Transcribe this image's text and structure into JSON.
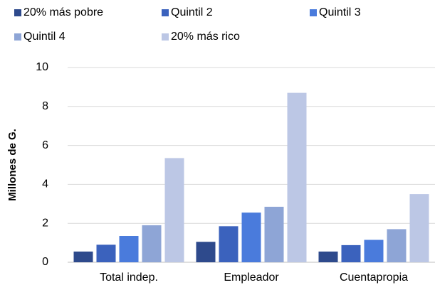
{
  "chart_data": {
    "type": "bar",
    "y_label": "Millones de G.",
    "categories": [
      "Total indep.",
      "Empleador",
      "Cuentapropia"
    ],
    "series": [
      {
        "name": "20% más pobre",
        "color": "#2e4a8c",
        "values": [
          0.55,
          1.05,
          0.55
        ]
      },
      {
        "name": "Quintil 2",
        "color": "#3b62bd",
        "values": [
          0.9,
          1.85,
          0.88
        ]
      },
      {
        "name": "Quintil 3",
        "color": "#4a7bdc",
        "values": [
          1.35,
          2.55,
          1.15
        ]
      },
      {
        "name": "Quintil 4",
        "color": "#8ea5d6",
        "values": [
          1.9,
          2.85,
          1.7
        ]
      },
      {
        "name": "20% más rico",
        "color": "#bcc7e5",
        "values": [
          5.35,
          8.7,
          3.5
        ]
      }
    ],
    "ylim": [
      0,
      10
    ],
    "yticks": [
      0,
      2,
      4,
      6,
      8,
      10
    ],
    "grid": true,
    "legend": "top"
  }
}
